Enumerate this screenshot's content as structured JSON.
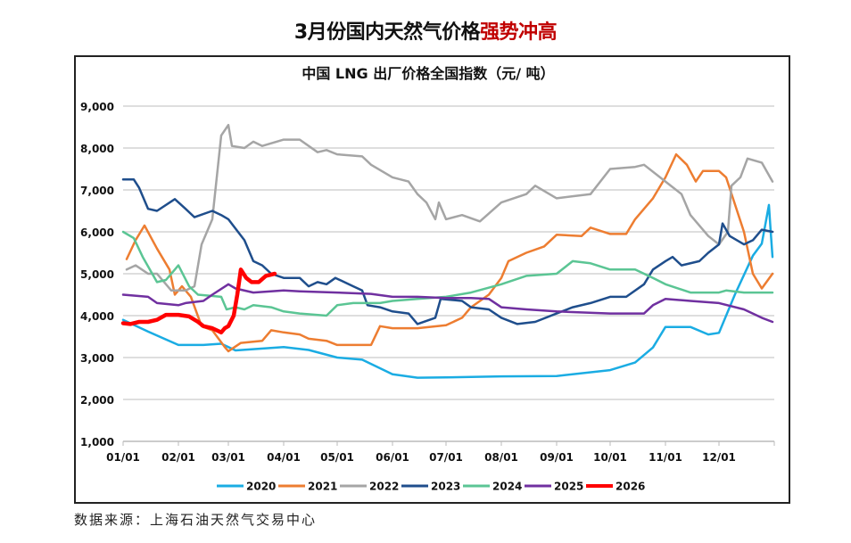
{
  "header": {
    "title_main": "3月份国内天然气价格",
    "title_highlight": "强势冲高",
    "highlight_color": "#C00000"
  },
  "footer": {
    "source": "数据来源：上海石油天然气交易中心"
  },
  "chart_data": {
    "type": "line",
    "title": "中国 LNG 出厂价格全国指数（元/ 吨）",
    "xlabel": "",
    "ylabel": "",
    "ylim": [
      1000,
      9000
    ],
    "yticks": [
      "1,000",
      "2,000",
      "3,000",
      "4,000",
      "5,000",
      "6,000",
      "7,000",
      "8,000",
      "9,000"
    ],
    "xticks": [
      "01/01",
      "02/01",
      "03/01",
      "04/01",
      "05/01",
      "06/01",
      "07/01",
      "08/01",
      "09/01",
      "10/01",
      "11/01",
      "12/01"
    ],
    "grid": "horizontal",
    "legend": "bottom",
    "series": [
      {
        "name": "2020",
        "color": "#1AACE3",
        "width": 2.5,
        "points": [
          [
            "01/01",
            3900
          ],
          [
            "01/15",
            3620
          ],
          [
            "02/01",
            3300
          ],
          [
            "02/15",
            3300
          ],
          [
            "02/25",
            3330
          ],
          [
            "03/05",
            3170
          ],
          [
            "04/01",
            3250
          ],
          [
            "04/15",
            3180
          ],
          [
            "05/01",
            3000
          ],
          [
            "05/15",
            2950
          ],
          [
            "06/01",
            2600
          ],
          [
            "06/15",
            2520
          ],
          [
            "07/01",
            2525
          ],
          [
            "08/01",
            2550
          ],
          [
            "09/01",
            2560
          ],
          [
            "10/01",
            2700
          ],
          [
            "10/15",
            2880
          ],
          [
            "10/25",
            3240
          ],
          [
            "11/01",
            3730
          ],
          [
            "11/15",
            3730
          ],
          [
            "11/25",
            3550
          ],
          [
            "12/01",
            3590
          ],
          [
            "12/10",
            4510
          ],
          [
            "12/20",
            5430
          ],
          [
            "12/25",
            5720
          ],
          [
            "12/29",
            6640
          ],
          [
            "12/30",
            6000
          ],
          [
            "12/31",
            5400
          ]
        ]
      },
      {
        "name": "2021",
        "color": "#ED7D31",
        "width": 2.5,
        "points": [
          [
            "01/03",
            5350
          ],
          [
            "01/08",
            5800
          ],
          [
            "01/13",
            6150
          ],
          [
            "01/20",
            5600
          ],
          [
            "01/27",
            5100
          ],
          [
            "01/30",
            4500
          ],
          [
            "02/03",
            4700
          ],
          [
            "02/08",
            4450
          ],
          [
            "02/14",
            3750
          ],
          [
            "02/20",
            3650
          ],
          [
            "02/27",
            3250
          ],
          [
            "03/01",
            3150
          ],
          [
            "03/08",
            3350
          ],
          [
            "03/20",
            3400
          ],
          [
            "03/25",
            3650
          ],
          [
            "04/01",
            3600
          ],
          [
            "04/10",
            3550
          ],
          [
            "04/15",
            3450
          ],
          [
            "04/25",
            3400
          ],
          [
            "05/01",
            3300
          ],
          [
            "05/20",
            3300
          ],
          [
            "05/25",
            3750
          ],
          [
            "06/01",
            3700
          ],
          [
            "06/15",
            3700
          ],
          [
            "07/01",
            3770
          ],
          [
            "07/10",
            3950
          ],
          [
            "07/15",
            4200
          ],
          [
            "07/25",
            4500
          ],
          [
            "08/01",
            4900
          ],
          [
            "08/05",
            5300
          ],
          [
            "08/15",
            5500
          ],
          [
            "08/25",
            5650
          ],
          [
            "09/01",
            5930
          ],
          [
            "09/15",
            5900
          ],
          [
            "09/20",
            6100
          ],
          [
            "10/01",
            5950
          ],
          [
            "10/10",
            5950
          ],
          [
            "10/15",
            6300
          ],
          [
            "10/25",
            6800
          ],
          [
            "11/01",
            7300
          ],
          [
            "11/07",
            7850
          ],
          [
            "11/13",
            7600
          ],
          [
            "11/18",
            7200
          ],
          [
            "11/22",
            7450
          ],
          [
            "12/01",
            7450
          ],
          [
            "12/05",
            7300
          ],
          [
            "12/15",
            6000
          ],
          [
            "12/20",
            5000
          ],
          [
            "12/25",
            4650
          ],
          [
            "12/31",
            5000
          ]
        ]
      },
      {
        "name": "2022",
        "color": "#A5A5A5",
        "width": 2.5,
        "points": [
          [
            "01/03",
            5100
          ],
          [
            "01/08",
            5200
          ],
          [
            "01/15",
            5000
          ],
          [
            "01/20",
            5000
          ],
          [
            "01/28",
            4600
          ],
          [
            "02/05",
            4600
          ],
          [
            "02/10",
            4700
          ],
          [
            "02/14",
            5700
          ],
          [
            "02/20",
            6300
          ],
          [
            "02/25",
            8300
          ],
          [
            "03/01",
            8550
          ],
          [
            "03/03",
            8050
          ],
          [
            "03/10",
            8000
          ],
          [
            "03/15",
            8150
          ],
          [
            "03/20",
            8050
          ],
          [
            "04/01",
            8200
          ],
          [
            "04/10",
            8200
          ],
          [
            "04/20",
            7900
          ],
          [
            "04/25",
            7950
          ],
          [
            "05/01",
            7850
          ],
          [
            "05/15",
            7800
          ],
          [
            "05/20",
            7600
          ],
          [
            "06/01",
            7300
          ],
          [
            "06/10",
            7200
          ],
          [
            "06/15",
            6900
          ],
          [
            "06/20",
            6700
          ],
          [
            "06/25",
            6300
          ],
          [
            "06/27",
            6700
          ],
          [
            "07/01",
            6300
          ],
          [
            "07/10",
            6400
          ],
          [
            "07/20",
            6250
          ],
          [
            "08/01",
            6700
          ],
          [
            "08/15",
            6900
          ],
          [
            "08/20",
            7100
          ],
          [
            "09/01",
            6800
          ],
          [
            "09/10",
            6850
          ],
          [
            "09/20",
            6900
          ],
          [
            "10/01",
            7500
          ],
          [
            "10/15",
            7550
          ],
          [
            "10/20",
            7600
          ],
          [
            "11/01",
            7200
          ],
          [
            "11/10",
            6900
          ],
          [
            "11/15",
            6400
          ],
          [
            "11/25",
            5900
          ],
          [
            "12/01",
            5700
          ],
          [
            "12/06",
            6000
          ],
          [
            "12/08",
            7100
          ],
          [
            "12/13",
            7300
          ],
          [
            "12/17",
            7750
          ],
          [
            "12/25",
            7650
          ],
          [
            "12/31",
            7200
          ]
        ]
      },
      {
        "name": "2023",
        "color": "#1F4E8C",
        "width": 2.5,
        "points": [
          [
            "01/01",
            7250
          ],
          [
            "01/07",
            7250
          ],
          [
            "01/10",
            7050
          ],
          [
            "01/15",
            6550
          ],
          [
            "01/20",
            6500
          ],
          [
            "01/30",
            6780
          ],
          [
            "02/05",
            6550
          ],
          [
            "02/10",
            6350
          ],
          [
            "02/20",
            6500
          ],
          [
            "02/25",
            6400
          ],
          [
            "03/01",
            6300
          ],
          [
            "03/10",
            5800
          ],
          [
            "03/15",
            5300
          ],
          [
            "03/20",
            5200
          ],
          [
            "03/25",
            5000
          ],
          [
            "04/01",
            4900
          ],
          [
            "04/10",
            4900
          ],
          [
            "04/15",
            4700
          ],
          [
            "04/20",
            4800
          ],
          [
            "04/25",
            4750
          ],
          [
            "04/30",
            4900
          ],
          [
            "05/10",
            4700
          ],
          [
            "05/15",
            4600
          ],
          [
            "05/18",
            4250
          ],
          [
            "05/25",
            4200
          ],
          [
            "06/01",
            4100
          ],
          [
            "06/10",
            4050
          ],
          [
            "06/15",
            3800
          ],
          [
            "06/25",
            3950
          ],
          [
            "06/28",
            4400
          ],
          [
            "07/10",
            4350
          ],
          [
            "07/15",
            4200
          ],
          [
            "07/25",
            4150
          ],
          [
            "08/01",
            3950
          ],
          [
            "08/10",
            3800
          ],
          [
            "08/20",
            3850
          ],
          [
            "09/01",
            4050
          ],
          [
            "09/10",
            4200
          ],
          [
            "09/20",
            4300
          ],
          [
            "10/01",
            4450
          ],
          [
            "10/10",
            4450
          ],
          [
            "10/20",
            4750
          ],
          [
            "10/25",
            5100
          ],
          [
            "11/01",
            5300
          ],
          [
            "11/05",
            5400
          ],
          [
            "11/10",
            5200
          ],
          [
            "11/20",
            5300
          ],
          [
            "11/25",
            5500
          ],
          [
            "12/01",
            5700
          ],
          [
            "12/03",
            6200
          ],
          [
            "12/07",
            5900
          ],
          [
            "12/15",
            5700
          ],
          [
            "12/20",
            5800
          ],
          [
            "12/25",
            6050
          ],
          [
            "12/31",
            6000
          ]
        ]
      },
      {
        "name": "2024",
        "color": "#5BC594",
        "width": 2.5,
        "points": [
          [
            "01/01",
            6000
          ],
          [
            "01/07",
            5850
          ],
          [
            "01/12",
            5400
          ],
          [
            "01/20",
            4800
          ],
          [
            "01/25",
            4850
          ],
          [
            "01/30",
            5100
          ],
          [
            "02/01",
            5200
          ],
          [
            "02/07",
            4700
          ],
          [
            "02/12",
            4500
          ],
          [
            "02/25",
            4450
          ],
          [
            "02/28",
            4150
          ],
          [
            "03/05",
            4200
          ],
          [
            "03/10",
            4150
          ],
          [
            "03/15",
            4250
          ],
          [
            "03/25",
            4200
          ],
          [
            "04/01",
            4100
          ],
          [
            "04/10",
            4050
          ],
          [
            "04/25",
            4000
          ],
          [
            "05/01",
            4250
          ],
          [
            "05/10",
            4300
          ],
          [
            "05/25",
            4300
          ],
          [
            "06/01",
            4350
          ],
          [
            "06/15",
            4400
          ],
          [
            "07/01",
            4450
          ],
          [
            "07/15",
            4550
          ],
          [
            "08/01",
            4750
          ],
          [
            "08/15",
            4950
          ],
          [
            "09/01",
            5000
          ],
          [
            "09/10",
            5300
          ],
          [
            "09/20",
            5250
          ],
          [
            "10/01",
            5100
          ],
          [
            "10/15",
            5100
          ],
          [
            "10/25",
            4900
          ],
          [
            "11/01",
            4750
          ],
          [
            "11/15",
            4550
          ],
          [
            "12/01",
            4550
          ],
          [
            "12/05",
            4600
          ],
          [
            "12/15",
            4550
          ],
          [
            "12/31",
            4550
          ]
        ]
      },
      {
        "name": "2025",
        "color": "#7030A0",
        "width": 2.5,
        "points": [
          [
            "01/01",
            4500
          ],
          [
            "01/15",
            4450
          ],
          [
            "01/20",
            4300
          ],
          [
            "02/01",
            4250
          ],
          [
            "02/05",
            4300
          ],
          [
            "02/15",
            4350
          ],
          [
            "02/20",
            4500
          ],
          [
            "03/01",
            4750
          ],
          [
            "03/05",
            4650
          ],
          [
            "03/15",
            4550
          ],
          [
            "04/01",
            4600
          ],
          [
            "04/10",
            4580
          ],
          [
            "05/01",
            4550
          ],
          [
            "05/20",
            4520
          ],
          [
            "06/01",
            4450
          ],
          [
            "06/15",
            4450
          ],
          [
            "07/01",
            4420
          ],
          [
            "07/15",
            4420
          ],
          [
            "07/25",
            4400
          ],
          [
            "08/01",
            4200
          ],
          [
            "08/15",
            4150
          ],
          [
            "09/01",
            4100
          ],
          [
            "10/01",
            4050
          ],
          [
            "10/20",
            4050
          ],
          [
            "10/25",
            4250
          ],
          [
            "11/01",
            4400
          ],
          [
            "11/15",
            4350
          ],
          [
            "12/01",
            4300
          ],
          [
            "12/15",
            4150
          ],
          [
            "12/25",
            3950
          ],
          [
            "12/31",
            3850
          ]
        ]
      },
      {
        "name": "2026",
        "color": "#FF0000",
        "width": 4.5,
        "points": [
          [
            "01/01",
            3820
          ],
          [
            "01/05",
            3800
          ],
          [
            "01/10",
            3850
          ],
          [
            "01/15",
            3850
          ],
          [
            "01/20",
            3900
          ],
          [
            "01/25",
            4020
          ],
          [
            "02/01",
            4020
          ],
          [
            "02/07",
            3980
          ],
          [
            "02/12",
            3850
          ],
          [
            "02/15",
            3750
          ],
          [
            "02/20",
            3700
          ],
          [
            "02/25",
            3600
          ],
          [
            "02/27",
            3700
          ],
          [
            "03/01",
            3750
          ],
          [
            "03/04",
            4000
          ],
          [
            "03/06",
            4500
          ],
          [
            "03/08",
            5100
          ],
          [
            "03/11",
            4900
          ],
          [
            "03/14",
            4800
          ],
          [
            "03/18",
            4800
          ],
          [
            "03/22",
            4950
          ],
          [
            "03/27",
            5000
          ]
        ]
      }
    ]
  }
}
